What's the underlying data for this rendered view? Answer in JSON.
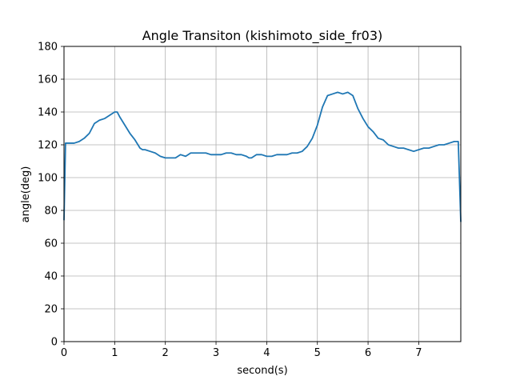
{
  "chart_data": {
    "type": "line",
    "title": "Angle Transiton (kishimoto_side_fr03)",
    "xlabel": "second(s)",
    "ylabel": "angle(deg)",
    "xlim": [
      0,
      7.83
    ],
    "ylim": [
      0,
      180
    ],
    "xticks": [
      0,
      1,
      2,
      3,
      4,
      5,
      6,
      7
    ],
    "yticks": [
      0,
      20,
      40,
      60,
      80,
      100,
      120,
      140,
      160,
      180
    ],
    "grid": true,
    "colors": {
      "line": "#1f77b4",
      "grid": "#b0b0b0",
      "axes": "#000000"
    },
    "series": [
      {
        "x": [
          0,
          0.03,
          0.1,
          0.2,
          0.3,
          0.4,
          0.5,
          0.6,
          0.7,
          0.8,
          0.9,
          1.0,
          1.05,
          1.1,
          1.2,
          1.3,
          1.4,
          1.5,
          1.55,
          1.6,
          1.7,
          1.8,
          1.9,
          2.0,
          2.1,
          2.2,
          2.3,
          2.4,
          2.5,
          2.6,
          2.7,
          2.8,
          2.9,
          3.0,
          3.1,
          3.2,
          3.3,
          3.4,
          3.5,
          3.6,
          3.65,
          3.7,
          3.8,
          3.9,
          4.0,
          4.1,
          4.2,
          4.3,
          4.4,
          4.5,
          4.6,
          4.7,
          4.8,
          4.9,
          5.0,
          5.1,
          5.2,
          5.3,
          5.4,
          5.5,
          5.6,
          5.7,
          5.8,
          5.9,
          6.0,
          6.1,
          6.2,
          6.3,
          6.4,
          6.5,
          6.6,
          6.7,
          6.8,
          6.9,
          7.0,
          7.1,
          7.2,
          7.3,
          7.4,
          7.5,
          7.6,
          7.7,
          7.78,
          7.83
        ],
        "y": [
          74,
          121,
          121,
          121,
          122,
          124,
          127,
          133,
          135,
          136,
          138,
          140,
          140,
          137,
          132,
          127,
          123,
          118,
          117,
          117,
          116,
          115,
          113,
          112,
          112,
          112,
          114,
          113,
          115,
          115,
          115,
          115,
          114,
          114,
          114,
          115,
          115,
          114,
          114,
          113,
          112,
          112,
          114,
          114,
          113,
          113,
          114,
          114,
          114,
          115,
          115,
          116,
          119,
          124,
          132,
          143,
          150,
          151,
          152,
          151,
          152,
          150,
          142,
          136,
          131,
          128,
          124,
          123,
          120,
          119,
          118,
          118,
          117,
          116,
          117,
          118,
          118,
          119,
          120,
          120,
          121,
          122,
          122,
          73
        ]
      }
    ]
  }
}
